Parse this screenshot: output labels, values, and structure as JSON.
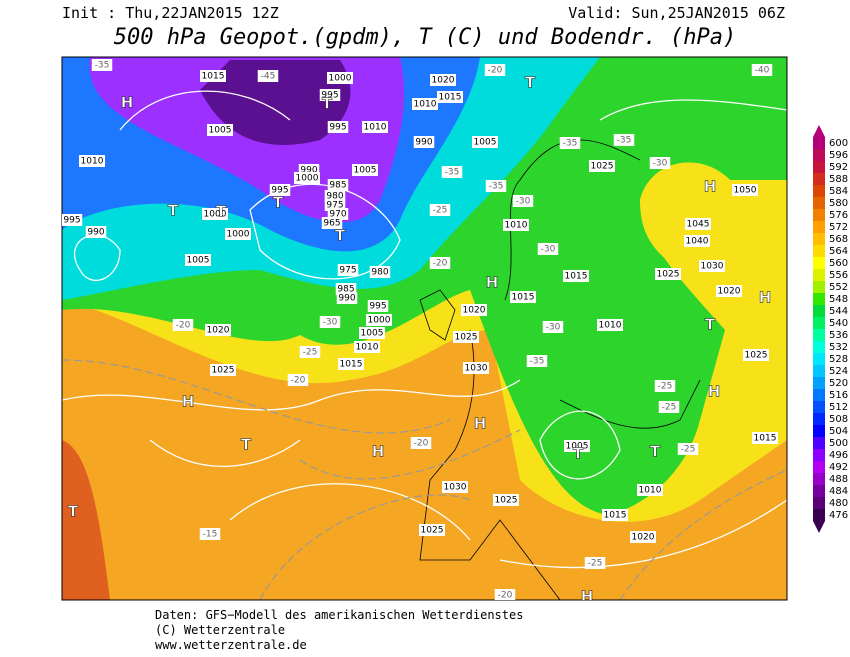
{
  "header": {
    "init": "Init : Thu,22JAN2015 12Z",
    "valid": "Valid: Sun,25JAN2015 06Z",
    "title": "500 hPa Geopot.(gpdm), T (C) und Bodendr. (hPa)"
  },
  "colorbar": {
    "ticks": [
      476,
      480,
      484,
      488,
      492,
      496,
      500,
      504,
      508,
      512,
      516,
      520,
      524,
      528,
      532,
      536,
      540,
      544,
      548,
      552,
      556,
      560,
      564,
      568,
      572,
      576,
      580,
      584,
      588,
      592,
      596,
      600
    ],
    "colors": [
      "#3c0050",
      "#5a0078",
      "#7800a0",
      "#9600c8",
      "#b400f0",
      "#8c00ff",
      "#5000ff",
      "#0000ff",
      "#0028ff",
      "#0050ff",
      "#0078ff",
      "#00a0ff",
      "#00c8ff",
      "#00e6ff",
      "#00ffdc",
      "#00ffa0",
      "#00f064",
      "#00dc3c",
      "#32e600",
      "#a0f000",
      "#dcf000",
      "#ffff00",
      "#ffdc00",
      "#ffbe00",
      "#ffa000",
      "#f08200",
      "#e66400",
      "#dc4600",
      "#d22d1e",
      "#c8143c",
      "#be0a5a",
      "#b40078"
    ]
  },
  "map": {
    "pressure_labels": [
      "1015",
      "1000",
      "995",
      "1020",
      "1015",
      "1010",
      "1005",
      "995",
      "1010",
      "1005",
      "1010",
      "990",
      "1025",
      "990",
      "1005",
      "1000",
      "985",
      "980",
      "975",
      "970",
      "965",
      "1050",
      "995",
      "1000",
      "1000",
      "995",
      "990",
      "1010",
      "1045",
      "1040",
      "1005",
      "975",
      "980",
      "985",
      "990",
      "1025",
      "1030",
      "1015",
      "1015",
      "1020",
      "995",
      "1020",
      "1000",
      "1020",
      "1010",
      "1005",
      "1025",
      "1010",
      "1015",
      "1030",
      "1025",
      "1025",
      "1005",
      "1010",
      "1015",
      "1030",
      "1025",
      "1025",
      "1015",
      "1020"
    ],
    "temperature_labels": [
      "-35",
      "-45",
      "-40",
      "-20",
      "-35",
      "-35",
      "-30",
      "-35",
      "-35",
      "-25",
      "-30",
      "-30",
      "-20",
      "-30",
      "-35",
      "-20",
      "-25",
      "-20",
      "-25",
      "-25",
      "-25",
      "-20",
      "-15",
      "-25",
      "-30",
      "-20"
    ],
    "centers": [
      "H",
      "H",
      "H",
      "H",
      "H",
      "H",
      "H",
      "H",
      "H",
      "T",
      "T",
      "T",
      "T",
      "T",
      "T",
      "T",
      "T",
      "T",
      "T",
      "T"
    ]
  },
  "footer": {
    "line1": "Daten: GFS−Modell des amerikanischen Wetterdienstes",
    "line2": "(C) Wetterzentrale",
    "line3": "www.wetterzentrale.de"
  }
}
